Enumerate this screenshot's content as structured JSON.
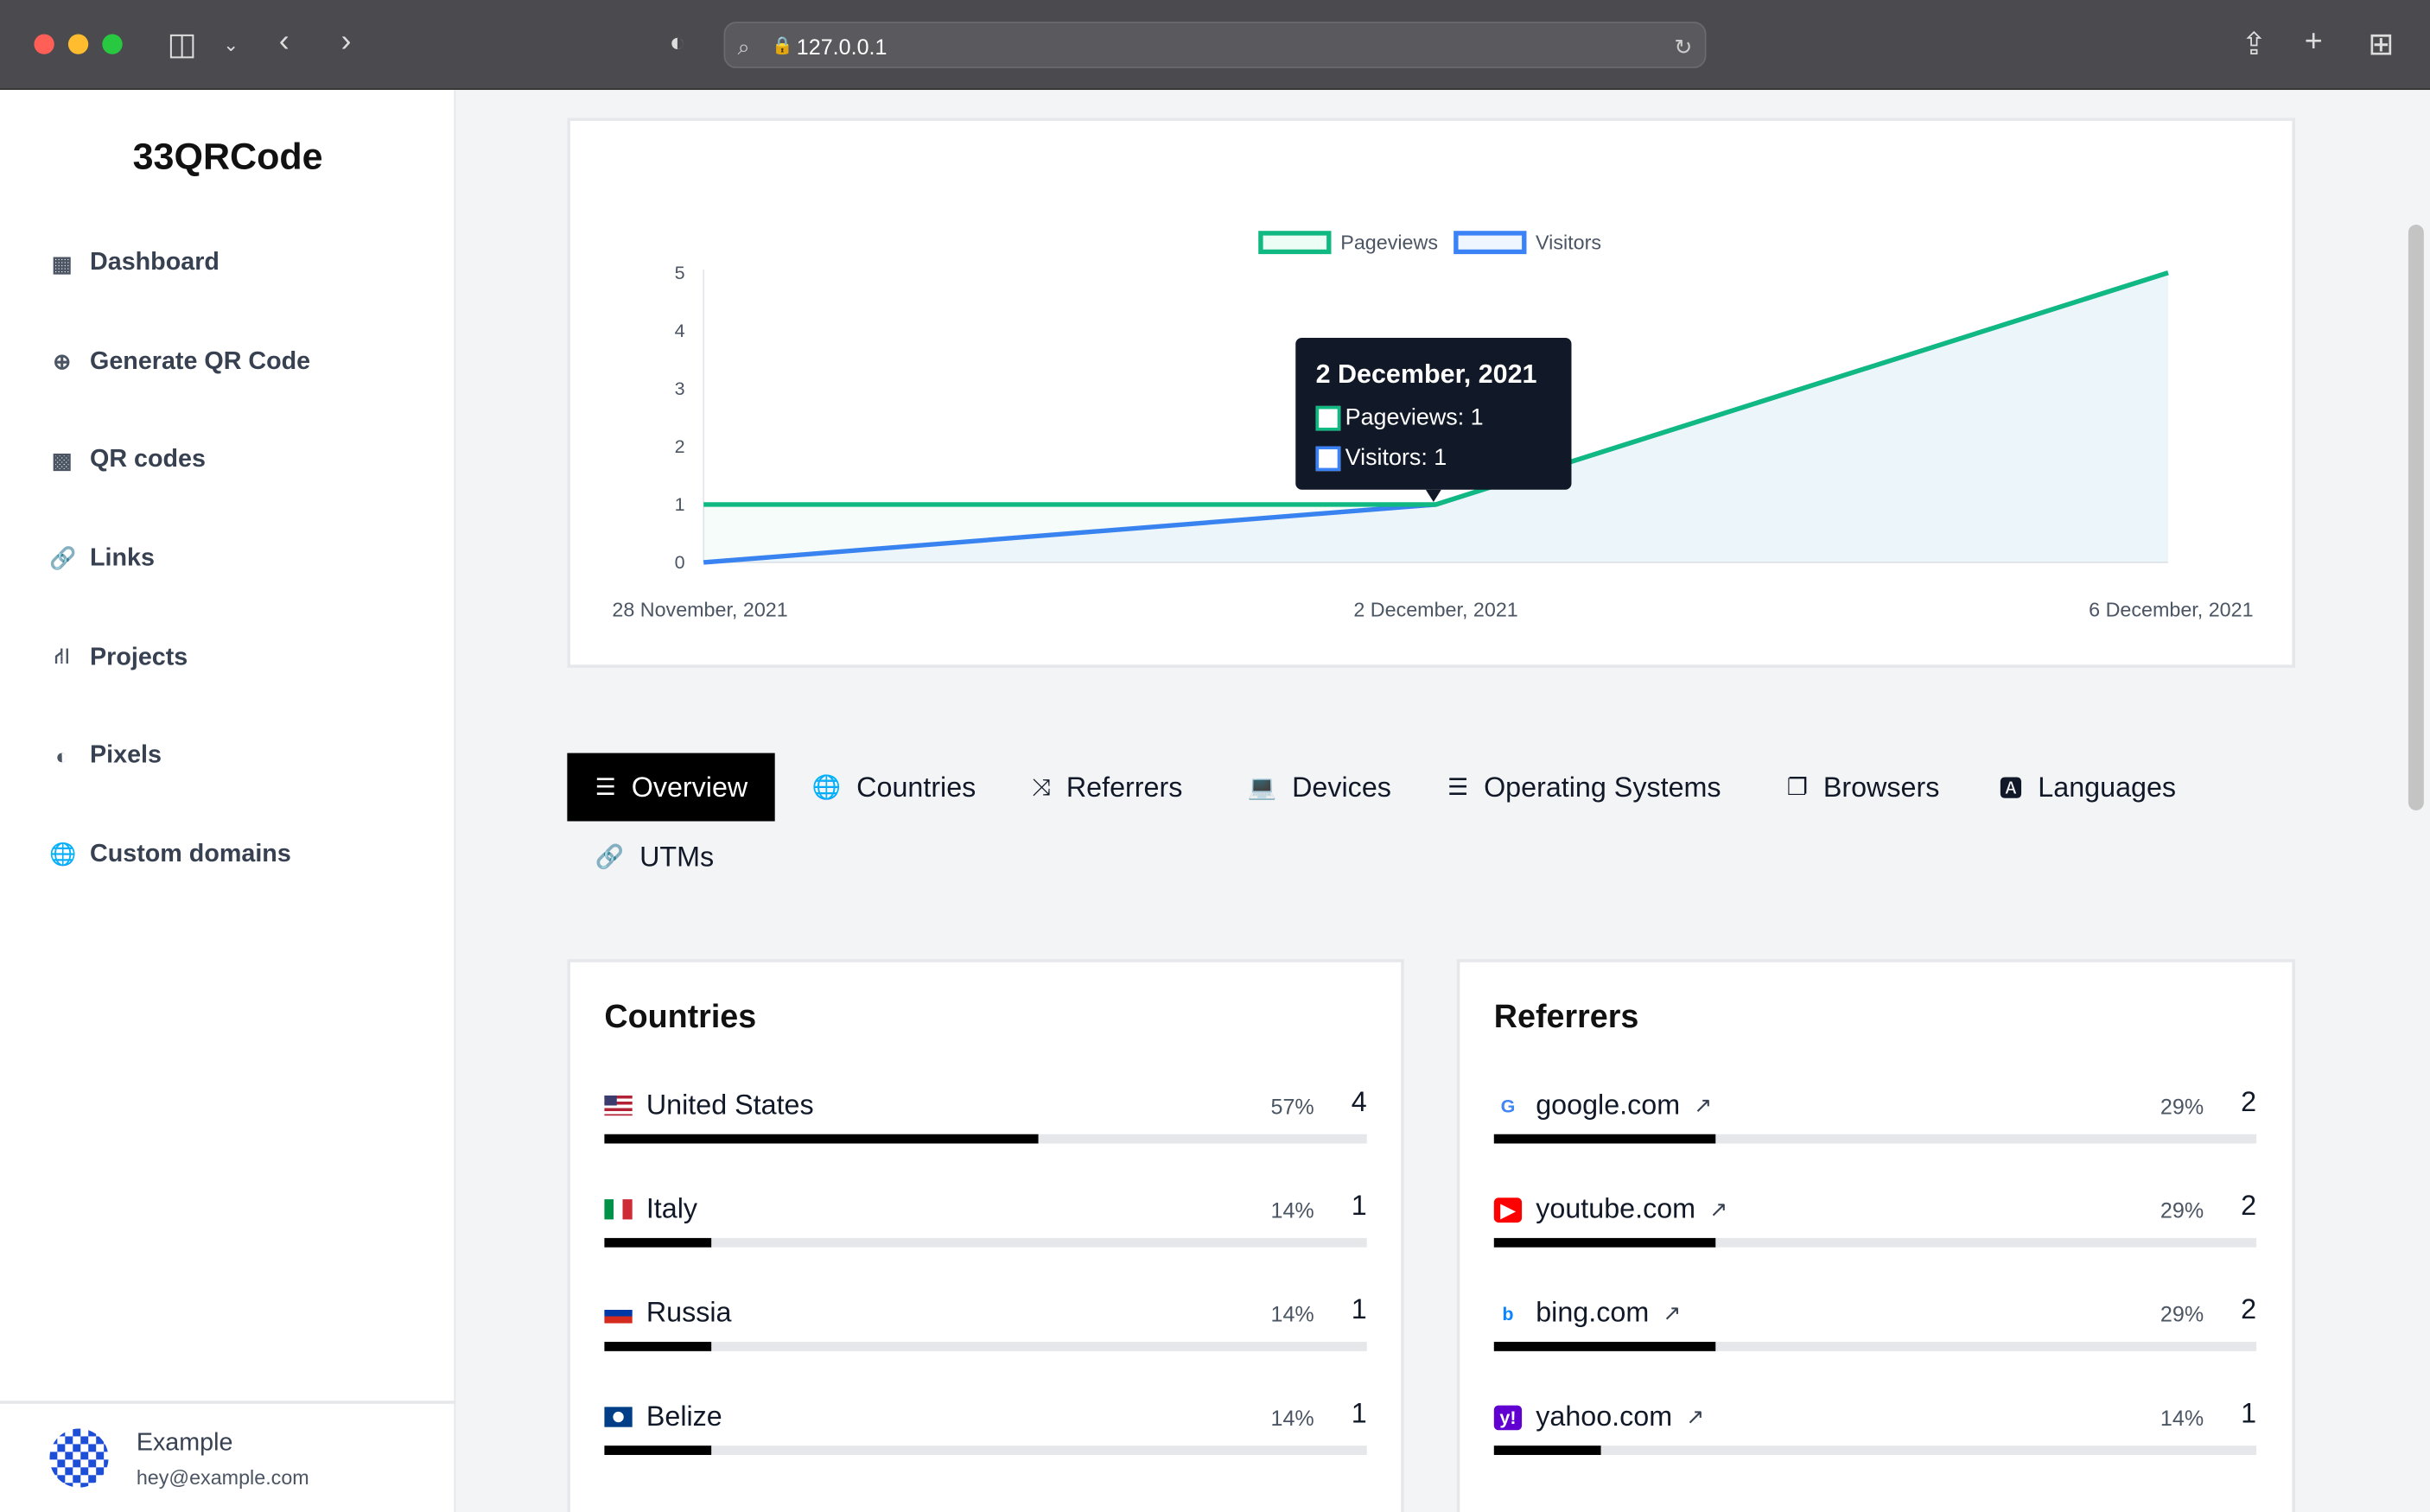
{
  "browser": {
    "url": "127.0.0.1"
  },
  "sidebar": {
    "brand": "33QRCode",
    "items": [
      {
        "label": "Dashboard",
        "icon": "grid-icon",
        "glyph": "▦"
      },
      {
        "label": "Generate QR Code",
        "icon": "plus-circle-icon",
        "glyph": "⊕"
      },
      {
        "label": "QR codes",
        "icon": "qr-icon",
        "glyph": "▩"
      },
      {
        "label": "Links",
        "icon": "link-icon",
        "glyph": "🔗"
      },
      {
        "label": "Projects",
        "icon": "sitemap-icon",
        "glyph": "⛙"
      },
      {
        "label": "Pixels",
        "icon": "adjust-icon",
        "glyph": "◐"
      },
      {
        "label": "Custom domains",
        "icon": "globe-icon",
        "glyph": "🌐"
      }
    ],
    "user": {
      "name": "Example",
      "email": "hey@example.com"
    }
  },
  "chart_data": {
    "type": "line",
    "x": [
      "28 November, 2021",
      "2 December, 2021",
      "6 December, 2021"
    ],
    "series": [
      {
        "name": "Pageviews",
        "values": [
          1,
          1,
          5
        ],
        "color": "#10b981"
      },
      {
        "name": "Visitors",
        "values": [
          0,
          1,
          5
        ],
        "color": "#3b82f6"
      }
    ],
    "ylim": [
      0,
      5
    ],
    "yticks": [
      "0",
      "1",
      "2",
      "3",
      "4",
      "5"
    ],
    "legend": "top-center",
    "tooltip": {
      "title": "2 December, 2021",
      "rows": [
        "Pageviews: 1",
        "Visitors: 1"
      ]
    }
  },
  "tabs": [
    {
      "label": "Overview",
      "icon": "list-icon",
      "glyph": "☰"
    },
    {
      "label": "Countries",
      "icon": "globe-icon",
      "glyph": "🌐"
    },
    {
      "label": "Referrers",
      "icon": "random-icon",
      "glyph": "⤨"
    },
    {
      "label": "Devices",
      "icon": "laptop-icon",
      "glyph": "💻"
    },
    {
      "label": "Operating Systems",
      "icon": "server-icon",
      "glyph": "☰"
    },
    {
      "label": "Browsers",
      "icon": "window-icon",
      "glyph": "❐"
    },
    {
      "label": "Languages",
      "icon": "language-icon",
      "glyph": "🅰"
    },
    {
      "label": "UTMs",
      "icon": "link-icon",
      "glyph": "🔗"
    }
  ],
  "countries": {
    "title": "Countries",
    "rows": [
      {
        "label": "United States",
        "percent": "57%",
        "count": "4",
        "fraction": 0.57
      },
      {
        "label": "Italy",
        "percent": "14%",
        "count": "1",
        "fraction": 0.14
      },
      {
        "label": "Russia",
        "percent": "14%",
        "count": "1",
        "fraction": 0.14
      },
      {
        "label": "Belize",
        "percent": "14%",
        "count": "1",
        "fraction": 0.14
      }
    ]
  },
  "referrers": {
    "title": "Referrers",
    "rows": [
      {
        "label": "google.com",
        "percent": "29%",
        "count": "2",
        "fraction": 0.29,
        "icon": "google-icon"
      },
      {
        "label": "youtube.com",
        "percent": "29%",
        "count": "2",
        "fraction": 0.29,
        "icon": "youtube-icon"
      },
      {
        "label": "bing.com",
        "percent": "29%",
        "count": "2",
        "fraction": 0.29,
        "icon": "bing-icon"
      },
      {
        "label": "yahoo.com",
        "percent": "14%",
        "count": "1",
        "fraction": 0.14,
        "icon": "yahoo-icon"
      }
    ]
  }
}
